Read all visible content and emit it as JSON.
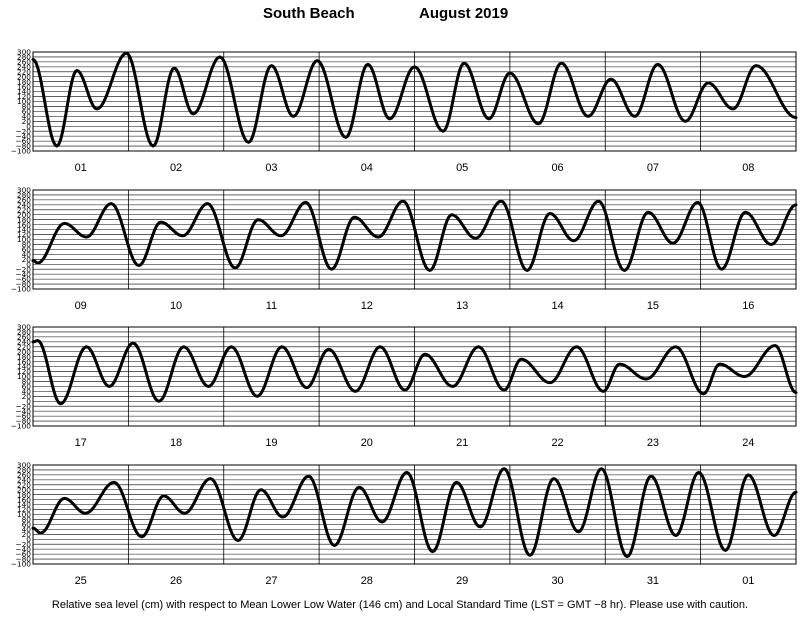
{
  "header": {
    "station": "South Beach",
    "period": "August   2019"
  },
  "footer": {
    "note": "Relative sea level (cm) with respect to Mean Lower Low Water (146 cm) and Local Standard Time (LST = GMT −8 hr). Please use with caution."
  },
  "chart_data": {
    "type": "line",
    "title": "South Beach          August   2019",
    "ylabel": "Relative sea level (cm)",
    "ylim": [
      -100,
      300
    ],
    "yticks": [
      300,
      280,
      260,
      240,
      220,
      200,
      180,
      160,
      140,
      120,
      100,
      80,
      60,
      40,
      20,
      0,
      -20,
      -40,
      -60,
      -80,
      -100
    ],
    "ytick_labels": [
      "300",
      "280",
      "260",
      "240",
      "220",
      "200",
      "180",
      "160",
      "140",
      "120",
      "100",
      "80",
      "60",
      "40",
      "20",
      "0",
      "−20",
      "−40",
      "−60",
      "−80",
      "−100"
    ],
    "grid": true,
    "line_color": "#000000",
    "panels": [
      {
        "days": [
          "01",
          "02",
          "03",
          "04",
          "05",
          "06",
          "07",
          "08"
        ],
        "extrema": [
          [
            0.0,
            270
          ],
          [
            0.25,
            -80
          ],
          [
            0.46,
            225
          ],
          [
            0.67,
            70
          ],
          [
            0.98,
            295
          ],
          [
            1.26,
            -80
          ],
          [
            1.48,
            235
          ],
          [
            1.68,
            50
          ],
          [
            1.96,
            280
          ],
          [
            2.26,
            -65
          ],
          [
            2.5,
            245
          ],
          [
            2.73,
            40
          ],
          [
            2.98,
            265
          ],
          [
            3.28,
            -45
          ],
          [
            3.51,
            250
          ],
          [
            3.74,
            30
          ],
          [
            4.0,
            240
          ],
          [
            4.3,
            -20
          ],
          [
            4.52,
            255
          ],
          [
            4.78,
            30
          ],
          [
            5.0,
            215
          ],
          [
            5.3,
            10
          ],
          [
            5.54,
            255
          ],
          [
            5.82,
            40
          ],
          [
            6.06,
            190
          ],
          [
            6.31,
            40
          ],
          [
            6.55,
            250
          ],
          [
            6.84,
            20
          ],
          [
            7.08,
            175
          ],
          [
            7.34,
            70
          ],
          [
            7.58,
            245
          ],
          [
            8.0,
            35
          ]
        ]
      },
      {
        "days": [
          "09",
          "10",
          "11",
          "12",
          "13",
          "14",
          "15",
          "16"
        ],
        "extrema": [
          [
            0.0,
            15
          ],
          [
            0.05,
            5
          ],
          [
            0.33,
            165
          ],
          [
            0.56,
            110
          ],
          [
            0.82,
            245
          ],
          [
            1.11,
            -5
          ],
          [
            1.34,
            170
          ],
          [
            1.57,
            115
          ],
          [
            1.83,
            245
          ],
          [
            2.12,
            -15
          ],
          [
            2.36,
            180
          ],
          [
            2.6,
            115
          ],
          [
            2.86,
            250
          ],
          [
            3.13,
            -20
          ],
          [
            3.37,
            190
          ],
          [
            3.62,
            110
          ],
          [
            3.88,
            255
          ],
          [
            4.16,
            -25
          ],
          [
            4.39,
            200
          ],
          [
            4.64,
            105
          ],
          [
            4.91,
            255
          ],
          [
            5.18,
            -25
          ],
          [
            5.42,
            205
          ],
          [
            5.67,
            95
          ],
          [
            5.93,
            255
          ],
          [
            6.2,
            -25
          ],
          [
            6.45,
            210
          ],
          [
            6.71,
            85
          ],
          [
            6.97,
            250
          ],
          [
            7.22,
            -20
          ],
          [
            7.47,
            210
          ],
          [
            7.74,
            80
          ],
          [
            8.0,
            240
          ]
        ]
      },
      {
        "days": [
          "17",
          "18",
          "19",
          "20",
          "21",
          "22",
          "23",
          "24"
        ],
        "extrema": [
          [
            0.0,
            240
          ],
          [
            0.05,
            245
          ],
          [
            0.29,
            -10
          ],
          [
            0.56,
            220
          ],
          [
            0.8,
            60
          ],
          [
            1.05,
            235
          ],
          [
            1.32,
            0
          ],
          [
            1.58,
            220
          ],
          [
            1.84,
            60
          ],
          [
            2.08,
            220
          ],
          [
            2.35,
            20
          ],
          [
            2.61,
            220
          ],
          [
            2.87,
            55
          ],
          [
            3.1,
            210
          ],
          [
            3.38,
            40
          ],
          [
            3.64,
            220
          ],
          [
            3.9,
            45
          ],
          [
            4.11,
            190
          ],
          [
            4.4,
            60
          ],
          [
            4.67,
            220
          ],
          [
            4.94,
            45
          ],
          [
            5.12,
            170
          ],
          [
            5.42,
            75
          ],
          [
            5.7,
            220
          ],
          [
            5.98,
            40
          ],
          [
            6.15,
            150
          ],
          [
            6.43,
            90
          ],
          [
            6.74,
            220
          ],
          [
            7.03,
            30
          ],
          [
            7.2,
            150
          ],
          [
            7.46,
            100
          ],
          [
            7.78,
            225
          ],
          [
            8.0,
            35
          ]
        ]
      },
      {
        "days": [
          "25",
          "26",
          "27",
          "28",
          "29",
          "30",
          "31",
          "01"
        ],
        "extrema": [
          [
            0.0,
            45
          ],
          [
            0.08,
            25
          ],
          [
            0.33,
            165
          ],
          [
            0.55,
            105
          ],
          [
            0.85,
            230
          ],
          [
            1.14,
            10
          ],
          [
            1.37,
            175
          ],
          [
            1.59,
            105
          ],
          [
            1.86,
            245
          ],
          [
            2.15,
            -5
          ],
          [
            2.39,
            200
          ],
          [
            2.62,
            90
          ],
          [
            2.89,
            255
          ],
          [
            3.16,
            -25
          ],
          [
            3.42,
            210
          ],
          [
            3.66,
            70
          ],
          [
            3.92,
            270
          ],
          [
            4.19,
            -50
          ],
          [
            4.44,
            230
          ],
          [
            4.69,
            50
          ],
          [
            4.94,
            285
          ],
          [
            5.21,
            -65
          ],
          [
            5.46,
            245
          ],
          [
            5.72,
            30
          ],
          [
            5.96,
            285
          ],
          [
            6.23,
            -70
          ],
          [
            6.48,
            255
          ],
          [
            6.74,
            15
          ],
          [
            6.98,
            270
          ],
          [
            7.26,
            -45
          ],
          [
            7.5,
            260
          ],
          [
            7.77,
            15
          ],
          [
            8.0,
            190
          ]
        ]
      }
    ]
  }
}
